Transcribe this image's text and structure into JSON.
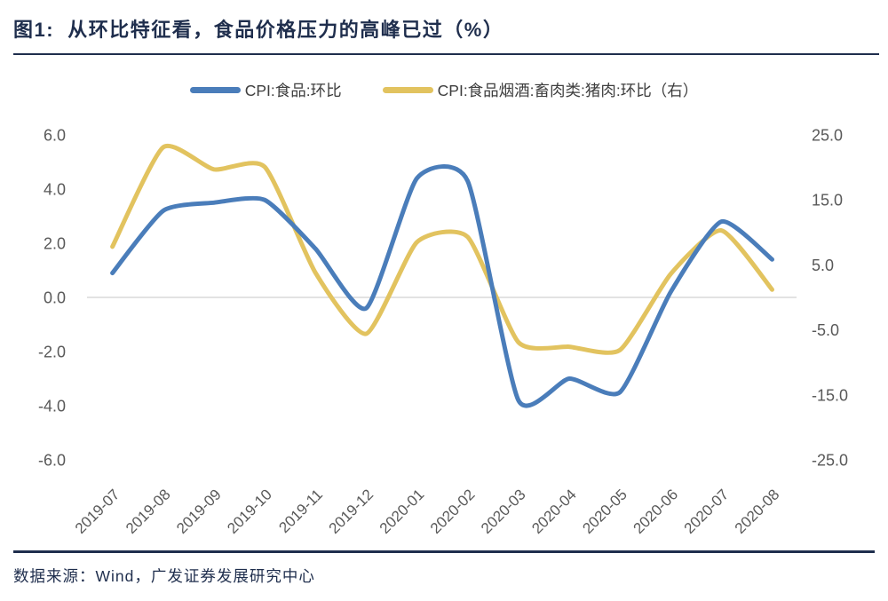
{
  "header": {
    "title": "图1:  从环比特征看，食品价格压力的高峰已过（%）"
  },
  "footer": {
    "source": "数据来源：Wind，广发证券发展研究中心"
  },
  "colors": {
    "accent_navy": "#1f2e4d",
    "series_blue": "#4a7dba",
    "series_yellow": "#e2c35f",
    "tick_gray": "#595959",
    "gridline_gray": "#d9d9d9"
  },
  "chart_data": {
    "type": "line",
    "title": "图1: 从环比特征看，食品价格压力的高峰已过（%）",
    "smoothed": true,
    "legend_position": "top",
    "grid": "zero-baseline-only",
    "categories": [
      "2019-07",
      "2019-08",
      "2019-09",
      "2019-10",
      "2019-11",
      "2019-12",
      "2020-01",
      "2020-02",
      "2020-03",
      "2020-04",
      "2020-05",
      "2020-06",
      "2020-07",
      "2020-08"
    ],
    "series": [
      {
        "name": "CPI:食品:环比",
        "axis": "left",
        "color": "#4a7dba",
        "values": [
          0.9,
          3.2,
          3.5,
          3.6,
          1.8,
          -0.4,
          4.4,
          4.3,
          -3.8,
          -3.0,
          -3.5,
          0.2,
          2.8,
          1.4
        ]
      },
      {
        "name": "CPI:食品烟酒:畜肉类:猪肉:环比（右）",
        "axis": "right",
        "color": "#e2c35f",
        "values": [
          7.8,
          23.1,
          19.7,
          20.1,
          3.8,
          -5.6,
          8.5,
          9.3,
          -6.9,
          -7.6,
          -8.1,
          3.6,
          10.3,
          1.2
        ]
      }
    ],
    "left_axis": {
      "ticks": [
        6.0,
        4.0,
        2.0,
        0.0,
        -2.0,
        -4.0,
        -6.0
      ],
      "range": [
        -6,
        6
      ]
    },
    "right_axis": {
      "ticks": [
        25.0,
        15.0,
        5.0,
        -5.0,
        -15.0,
        -25.0
      ],
      "range": [
        -25,
        25
      ]
    }
  }
}
